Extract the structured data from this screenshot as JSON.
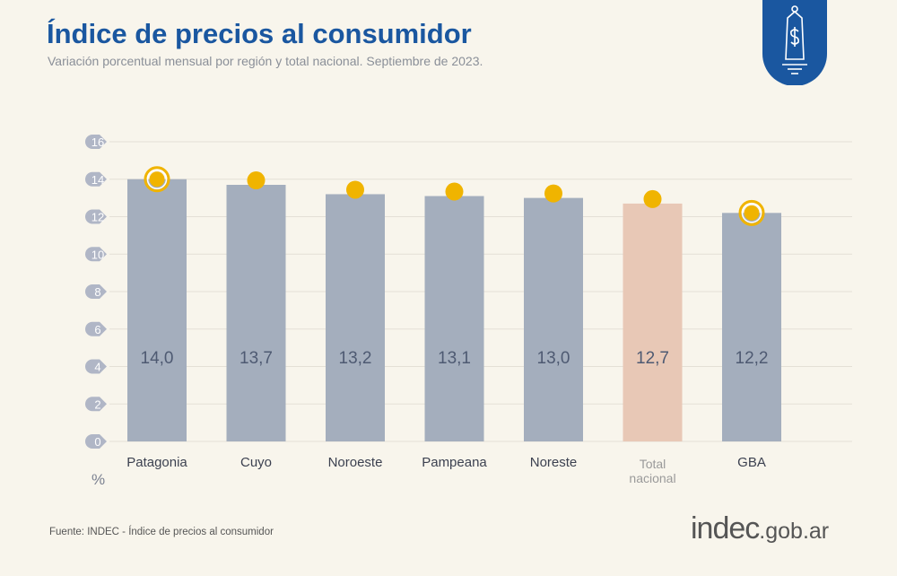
{
  "header": {
    "title": "Índice de precios al consumidor",
    "subtitle": "Variación porcentual mensual por región y total nacional. Septiembre de 2023."
  },
  "badge_icon": "price-tag-dollar-icon",
  "colors": {
    "title": "#1a57a0",
    "bar": "#a4aebd",
    "highlight_bar": "#e8c8b6",
    "marker": "#f0b400",
    "badge": "#1a57a0"
  },
  "chart_data": {
    "type": "bar",
    "categories": [
      "Patagonia",
      "Cuyo",
      "Noroeste",
      "Pampeana",
      "Noreste",
      "Total nacional",
      "GBA"
    ],
    "values": [
      14.0,
      13.7,
      13.2,
      13.1,
      13.0,
      12.7,
      12.2
    ],
    "value_labels": [
      "14,0",
      "13,7",
      "13,2",
      "13,1",
      "13,0",
      "12,7",
      "12,2"
    ],
    "highlighted": [
      "Total nacional"
    ],
    "ringed_markers": [
      "Patagonia",
      "GBA"
    ],
    "ylabel": "%",
    "ylim": [
      0,
      16
    ],
    "yticks": [
      0,
      2,
      4,
      6,
      8,
      10,
      12,
      14,
      16
    ],
    "grid": true
  },
  "footer": {
    "source": "Fuente: INDEC - Índice de precios al consumidor",
    "logo_main": "indec",
    "logo_domain": ".gob.ar"
  }
}
